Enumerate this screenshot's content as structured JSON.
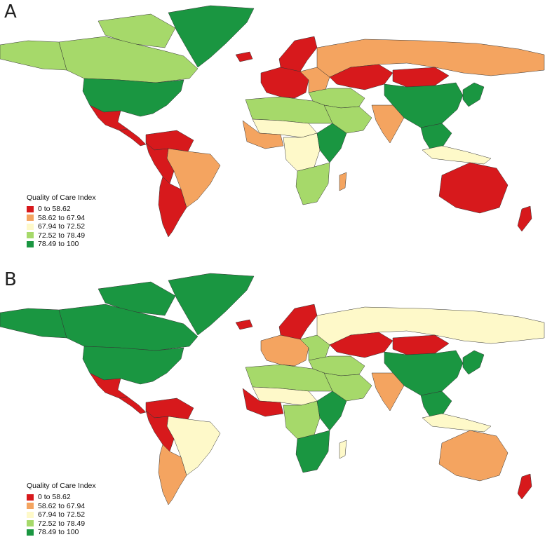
{
  "colors": {
    "red": "#d7191c",
    "orange": "#f4a460",
    "cream": "#fef9c9",
    "lightgreen": "#a6d96a",
    "green": "#1a9641",
    "border": "#333333",
    "background": "#ffffff"
  },
  "legend": {
    "title": "Quality of Care Index",
    "items": [
      {
        "label": "0 to 58.62",
        "color": "#d7191c"
      },
      {
        "label": "58.62 to 67.94",
        "color": "#f4a460"
      },
      {
        "label": "67.94 to 72.52",
        "color": "#fef9c9"
      },
      {
        "label": "72.52 to 78.49",
        "color": "#a6d96a"
      },
      {
        "label": "78.49 to 100",
        "color": "#1a9641"
      }
    ]
  },
  "panels": [
    {
      "letter": "A",
      "regions": {
        "greenland": "green",
        "canada": "lightgreen",
        "arctic_islands": "lightgreen",
        "usa": "green",
        "alaska": "lightgreen",
        "mexico": "red",
        "central_america": "red",
        "northern_south_america": "red",
        "brazil": "orange",
        "andes": "red",
        "southern_cone": "red",
        "iceland": "red",
        "scandinavia": "red",
        "western_europe": "red",
        "eastern_europe": "orange",
        "russia": "orange",
        "central_asia": "red",
        "mongolia": "red",
        "china": "green",
        "korea_japan": "green",
        "india": "orange",
        "middle_east": "lightgreen",
        "arabia": "lightgreen",
        "north_africa": "lightgreen",
        "sahel": "cream",
        "west_africa": "orange",
        "central_africa": "cream",
        "east_africa": "green",
        "southern_africa": "lightgreen",
        "madagascar": "orange",
        "southeast_asia": "green",
        "indonesia": "cream",
        "australia": "red",
        "new_zealand": "red"
      }
    },
    {
      "letter": "B",
      "regions": {
        "greenland": "green",
        "canada": "green",
        "arctic_islands": "green",
        "usa": "green",
        "alaska": "green",
        "mexico": "red",
        "central_america": "red",
        "northern_south_america": "red",
        "brazil": "cream",
        "andes": "red",
        "southern_cone": "orange",
        "iceland": "red",
        "scandinavia": "red",
        "western_europe": "orange",
        "eastern_europe": "lightgreen",
        "russia": "cream",
        "central_asia": "red",
        "mongolia": "red",
        "china": "green",
        "korea_japan": "green",
        "india": "orange",
        "middle_east": "lightgreen",
        "arabia": "lightgreen",
        "north_africa": "lightgreen",
        "sahel": "cream",
        "west_africa": "red",
        "central_africa": "lightgreen",
        "east_africa": "green",
        "southern_africa": "green",
        "madagascar": "cream",
        "southeast_asia": "green",
        "indonesia": "cream",
        "australia": "orange",
        "new_zealand": "red"
      }
    }
  ]
}
